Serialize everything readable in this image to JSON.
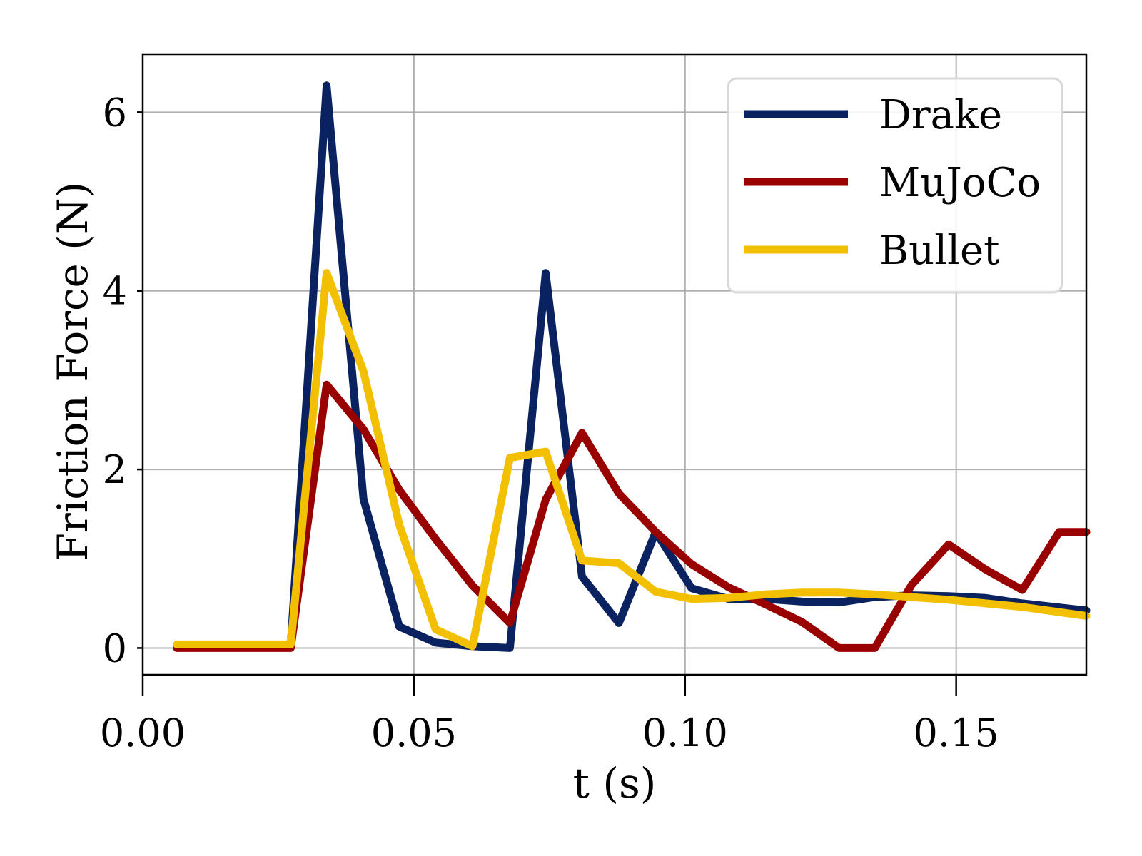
{
  "chart_data": {
    "type": "line",
    "xlabel": "t (s)",
    "ylabel": "Friction Force (N)",
    "xlim": [
      0.0,
      0.174
    ],
    "ylim": [
      -0.3,
      6.65
    ],
    "xticks": [
      {
        "value": 0.0,
        "label": "0.00"
      },
      {
        "value": 0.05,
        "label": "0.05"
      },
      {
        "value": 0.1,
        "label": "0.10"
      },
      {
        "value": 0.15,
        "label": "0.15"
      }
    ],
    "yticks": [
      {
        "value": 0,
        "label": "0"
      },
      {
        "value": 2,
        "label": "2"
      },
      {
        "value": 4,
        "label": "4"
      },
      {
        "value": 6,
        "label": "6"
      }
    ],
    "grid": true,
    "legend_position": "top-right",
    "series": [
      {
        "name": "Drake",
        "color": "#0a2360",
        "x": [
          0.0063,
          0.0273,
          0.0339,
          0.0407,
          0.0473,
          0.054,
          0.0608,
          0.0677,
          0.0743,
          0.081,
          0.0878,
          0.0946,
          0.1012,
          0.108,
          0.1148,
          0.1216,
          0.1284,
          0.135,
          0.1418,
          0.1486,
          0.1554,
          0.1622,
          0.174
        ],
        "y": [
          0.03,
          0.03,
          6.3,
          1.67,
          0.24,
          0.06,
          0.02,
          0.0,
          4.2,
          0.8,
          0.28,
          1.3,
          0.67,
          0.55,
          0.55,
          0.52,
          0.51,
          0.57,
          0.59,
          0.58,
          0.56,
          0.5,
          0.42
        ]
      },
      {
        "name": "MuJoCo",
        "color": "#990000",
        "x": [
          0.0063,
          0.0273,
          0.0339,
          0.0407,
          0.0473,
          0.054,
          0.0608,
          0.0677,
          0.0743,
          0.081,
          0.0878,
          0.0946,
          0.1012,
          0.108,
          0.1148,
          0.1216,
          0.1284,
          0.135,
          0.1418,
          0.1486,
          0.1554,
          0.1622,
          0.169,
          0.174
        ],
        "y": [
          0.0,
          0.0,
          2.95,
          2.45,
          1.77,
          1.22,
          0.7,
          0.28,
          1.66,
          2.41,
          1.73,
          1.3,
          0.94,
          0.68,
          0.49,
          0.29,
          0.0,
          0.0,
          0.71,
          1.16,
          0.88,
          0.65,
          1.3,
          1.3
        ]
      },
      {
        "name": "Bullet",
        "color": "#f2c000",
        "x": [
          0.0063,
          0.0273,
          0.0339,
          0.0407,
          0.0473,
          0.054,
          0.0608,
          0.0677,
          0.0743,
          0.081,
          0.0878,
          0.0946,
          0.1012,
          0.108,
          0.1148,
          0.1216,
          0.1284,
          0.135,
          0.1418,
          0.1486,
          0.1554,
          0.1622,
          0.174
        ],
        "y": [
          0.04,
          0.04,
          4.2,
          3.1,
          1.38,
          0.21,
          0.02,
          2.13,
          2.2,
          0.98,
          0.95,
          0.63,
          0.55,
          0.56,
          0.6,
          0.62,
          0.62,
          0.6,
          0.57,
          0.54,
          0.5,
          0.46,
          0.36
        ]
      }
    ]
  }
}
